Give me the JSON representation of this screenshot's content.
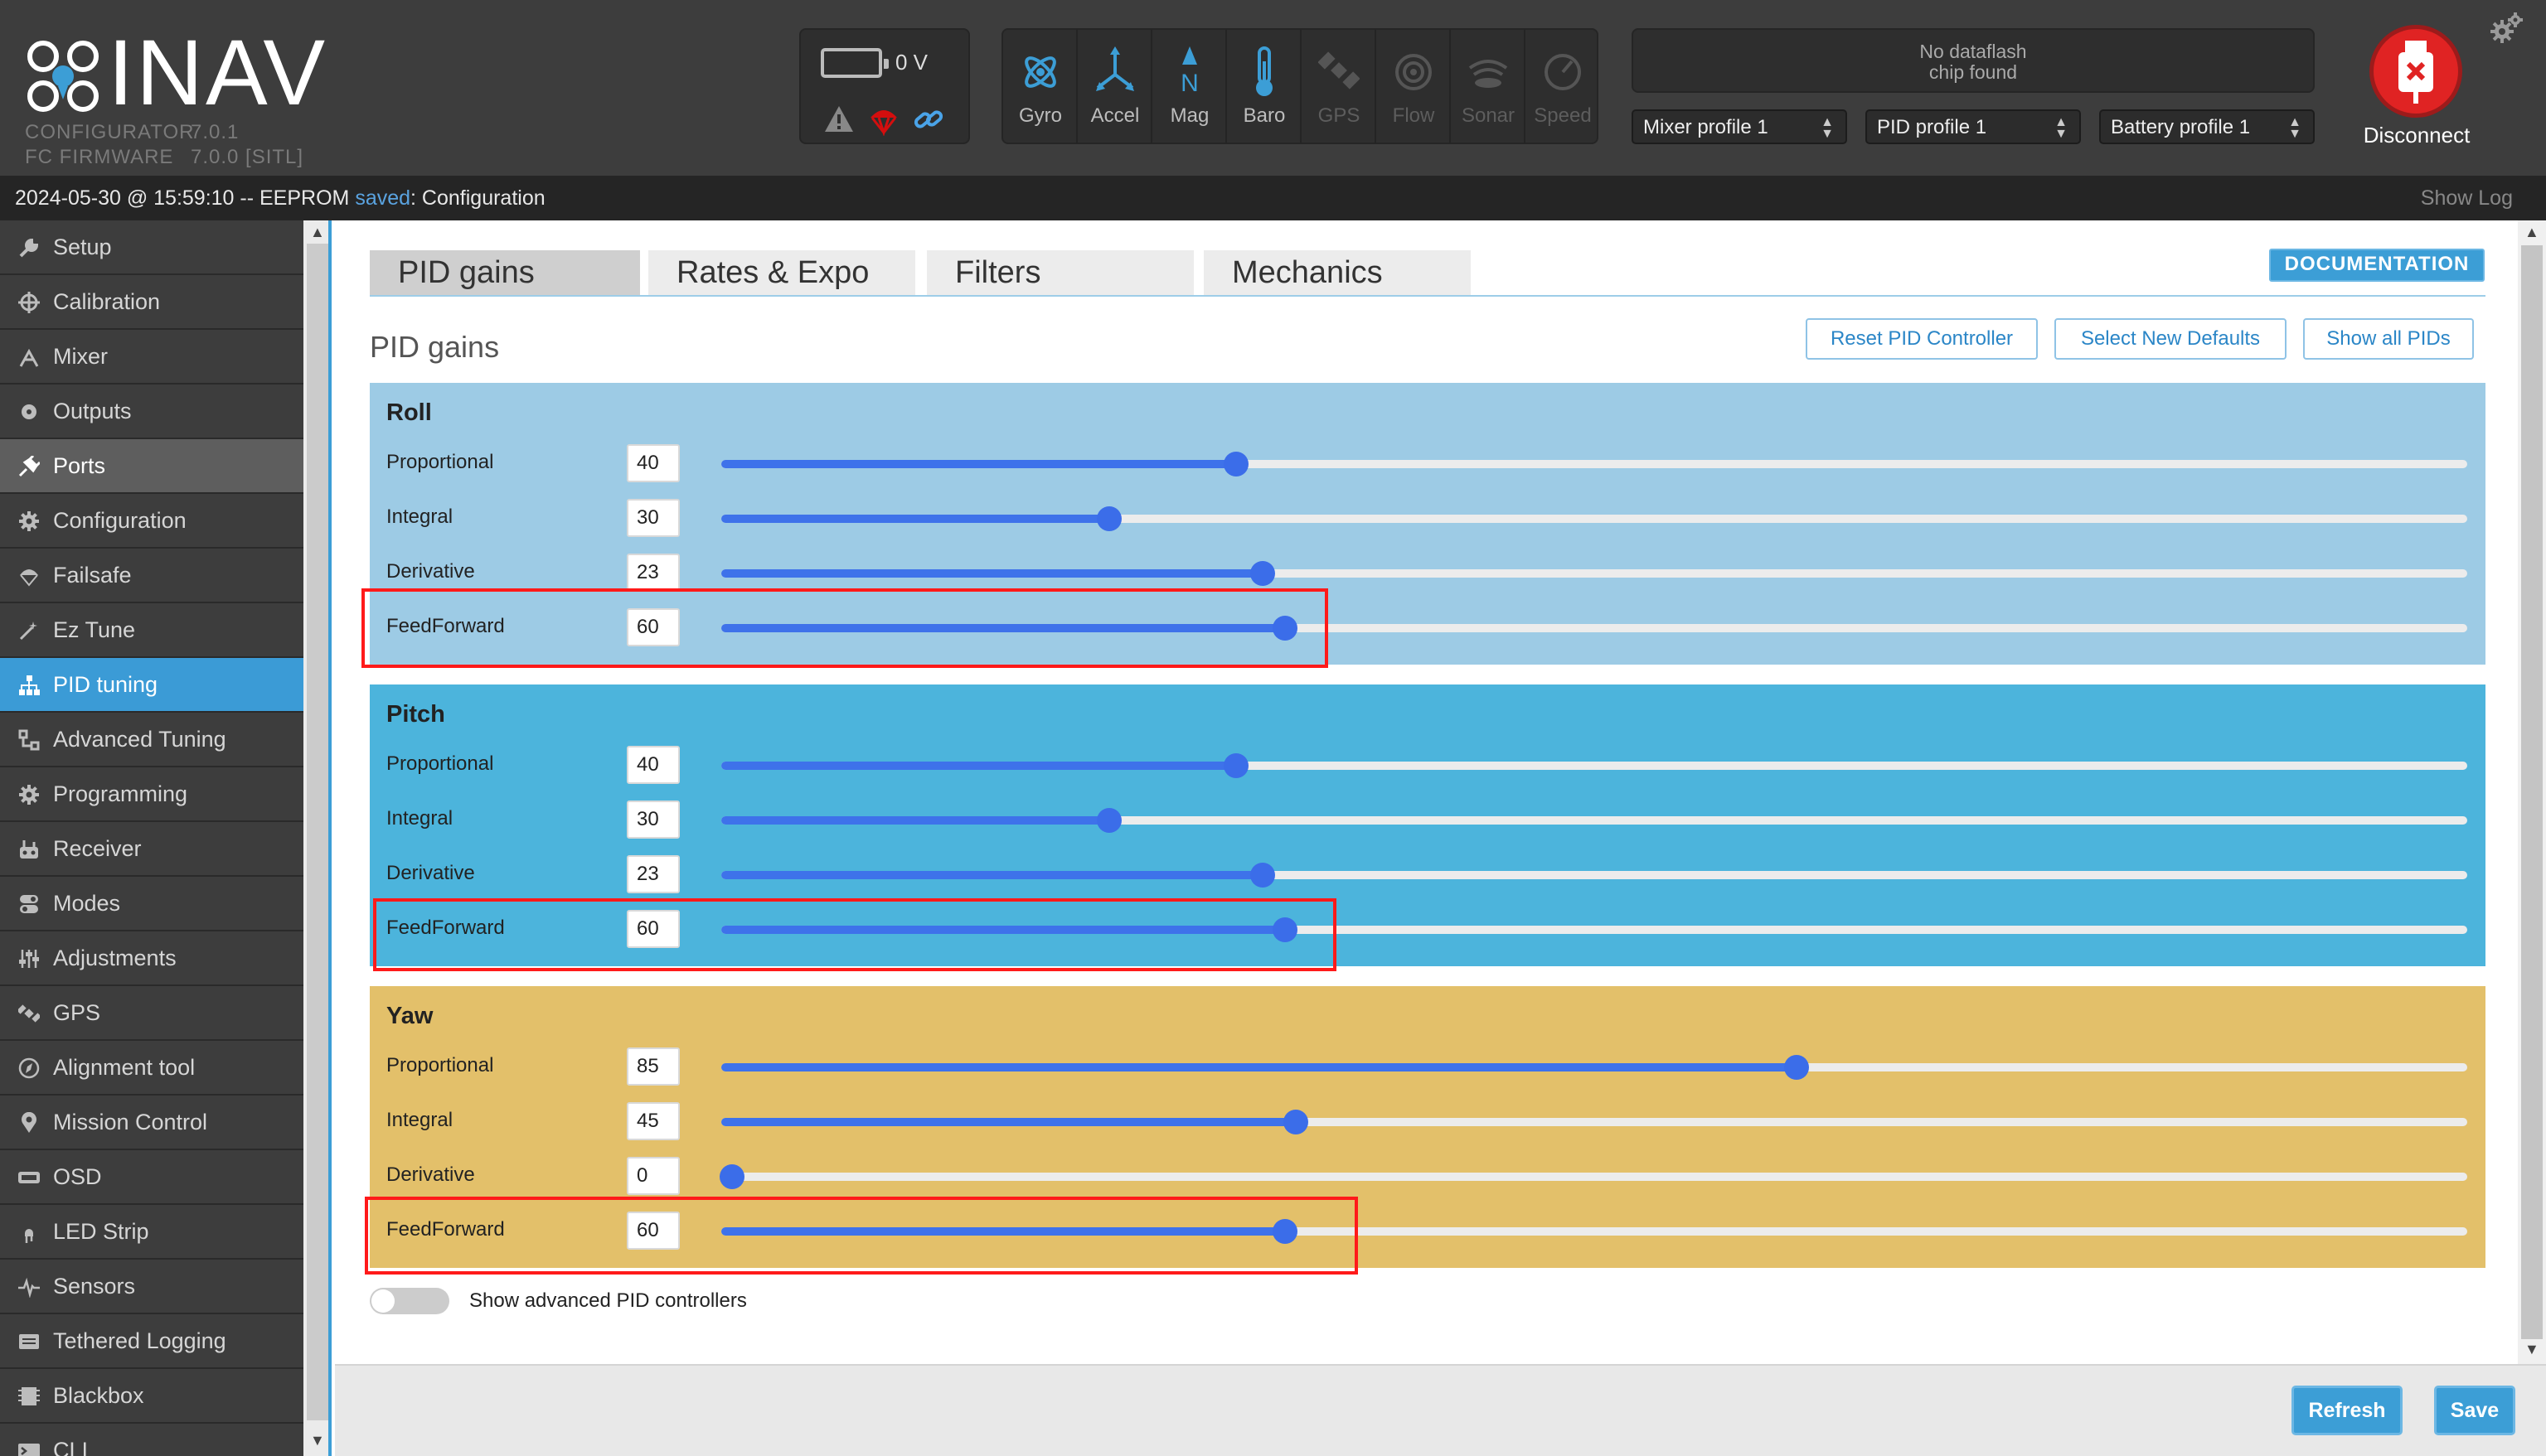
{
  "app": {
    "name": "INAV",
    "configurator_label": "CONFIGURATOR",
    "configurator_version": "7.0.1",
    "firmware_label": "FC FIRMWARE",
    "firmware_version": "7.0.0 [SITL]"
  },
  "battery": {
    "voltage": "0 V"
  },
  "sensors": [
    {
      "label": "Gyro",
      "active": true
    },
    {
      "label": "Accel",
      "active": true
    },
    {
      "label": "Mag",
      "active": true
    },
    {
      "label": "Baro",
      "active": true
    },
    {
      "label": "GPS",
      "active": false
    },
    {
      "label": "Flow",
      "active": false
    },
    {
      "label": "Sonar",
      "active": false
    },
    {
      "label": "Speed",
      "active": false
    }
  ],
  "dataflash": {
    "line1": "No dataflash",
    "line2": "chip found"
  },
  "profiles": {
    "mixer": "Mixer profile 1",
    "pid": "PID profile 1",
    "battery": "Battery profile 1"
  },
  "disconnect_label": "Disconnect",
  "status": {
    "prefix": "2024-05-30 @ 15:59:10 -- EEPROM ",
    "saved": "saved",
    "suffix": ": Configuration",
    "show_log": "Show Log"
  },
  "sidebar": {
    "items": [
      {
        "label": "Setup",
        "icon": "wrench-icon"
      },
      {
        "label": "Calibration",
        "icon": "crosshair-icon"
      },
      {
        "label": "Mixer",
        "icon": "mixer-icon"
      },
      {
        "label": "Outputs",
        "icon": "outputs-icon"
      },
      {
        "label": "Ports",
        "icon": "plug-icon"
      },
      {
        "label": "Configuration",
        "icon": "gear-icon"
      },
      {
        "label": "Failsafe",
        "icon": "parachute-icon"
      },
      {
        "label": "Ez Tune",
        "icon": "magic-wand-icon"
      },
      {
        "label": "PID tuning",
        "icon": "pid-tree-icon"
      },
      {
        "label": "Advanced Tuning",
        "icon": "advanced-tuning-icon"
      },
      {
        "label": "Programming",
        "icon": "cog-icon"
      },
      {
        "label": "Receiver",
        "icon": "remote-icon"
      },
      {
        "label": "Modes",
        "icon": "switches-icon"
      },
      {
        "label": "Adjustments",
        "icon": "sliders-icon"
      },
      {
        "label": "GPS",
        "icon": "satellite-icon"
      },
      {
        "label": "Alignment tool",
        "icon": "compass-icon"
      },
      {
        "label": "Mission Control",
        "icon": "map-pin-icon"
      },
      {
        "label": "OSD",
        "icon": "osd-icon"
      },
      {
        "label": "LED Strip",
        "icon": "led-icon"
      },
      {
        "label": "Sensors",
        "icon": "pulse-icon"
      },
      {
        "label": "Tethered Logging",
        "icon": "log-icon"
      },
      {
        "label": "Blackbox",
        "icon": "blackbox-icon"
      },
      {
        "label": "CLI",
        "icon": "terminal-icon"
      }
    ]
  },
  "tabs": [
    "PID gains",
    "Rates & Expo",
    "Filters",
    "Mechanics"
  ],
  "documentation_label": "DOCUMENTATION",
  "section_title": "PID gains",
  "actions": {
    "reset": "Reset PID Controller",
    "defaults": "Select New Defaults",
    "show_all": "Show all PIDs"
  },
  "axes": [
    {
      "name": "Roll",
      "color": "#9dcbe5",
      "rows": [
        {
          "label": "Proportional",
          "value": "40",
          "frac": 0.295
        },
        {
          "label": "Integral",
          "value": "30",
          "frac": 0.222
        },
        {
          "label": "Derivative",
          "value": "23",
          "frac": 0.31
        },
        {
          "label": "FeedForward",
          "value": "60",
          "frac": 0.323
        }
      ]
    },
    {
      "name": "Pitch",
      "color": "#4cb4dc",
      "rows": [
        {
          "label": "Proportional",
          "value": "40",
          "frac": 0.295
        },
        {
          "label": "Integral",
          "value": "30",
          "frac": 0.222
        },
        {
          "label": "Derivative",
          "value": "23",
          "frac": 0.31
        },
        {
          "label": "FeedForward",
          "value": "60",
          "frac": 0.323
        }
      ]
    },
    {
      "name": "Yaw",
      "color": "#e3c06a",
      "rows": [
        {
          "label": "Proportional",
          "value": "85",
          "frac": 0.616
        },
        {
          "label": "Integral",
          "value": "45",
          "frac": 0.329
        },
        {
          "label": "Derivative",
          "value": "0",
          "frac": 0.006
        },
        {
          "label": "FeedForward",
          "value": "60",
          "frac": 0.323
        }
      ]
    }
  ],
  "advanced_toggle_label": "Show advanced PID controllers",
  "footer": {
    "refresh": "Refresh",
    "save": "Save"
  }
}
